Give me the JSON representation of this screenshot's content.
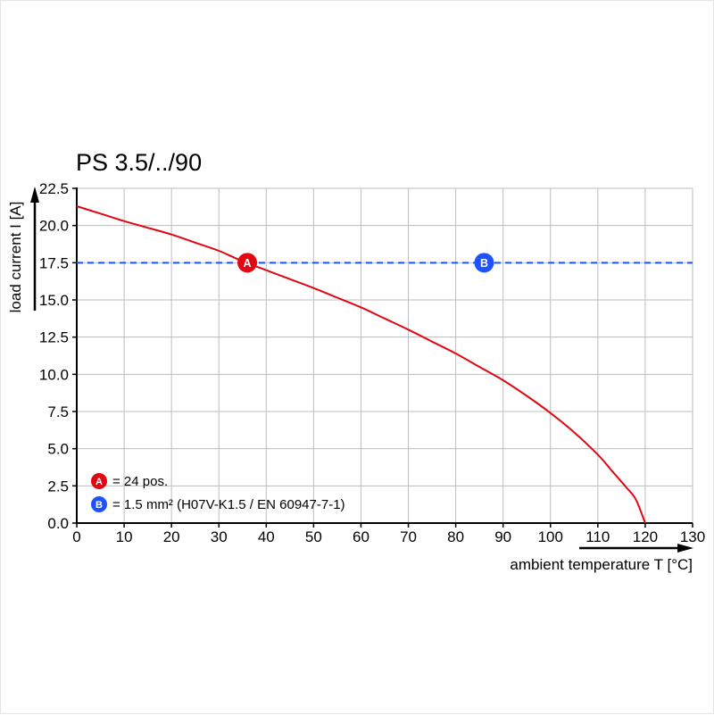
{
  "chart_data": {
    "type": "line",
    "title": "PS 3.5/../90",
    "xlabel": "ambient temperature T [°C]",
    "ylabel": "load current I [A]",
    "xlim": [
      0,
      130
    ],
    "ylim": [
      0,
      22.5
    ],
    "x_ticks": [
      0,
      10,
      20,
      30,
      40,
      50,
      60,
      70,
      80,
      90,
      100,
      110,
      120,
      130
    ],
    "y_ticks": [
      0,
      2.5,
      5,
      7.5,
      10,
      12.5,
      15,
      17.5,
      20,
      22.5
    ],
    "y_tick_labels": [
      "0.0",
      "2.5",
      "5.0",
      "7.5",
      "10.0",
      "12.5",
      "15.0",
      "17.5",
      "20.0",
      "22.5"
    ],
    "grid": true,
    "legend_position": "bottom-left-inside",
    "colors": {
      "curve": "#e30613",
      "reference": "#1f52ff",
      "grid": "#bdbdbd",
      "axis": "#000000",
      "background": "#ffffff"
    },
    "series": [
      {
        "name": "derating-curve",
        "color": "#e30613",
        "style": "solid",
        "points": [
          [
            0,
            21.3
          ],
          [
            5,
            20.8
          ],
          [
            10,
            20.3
          ],
          [
            15,
            19.85
          ],
          [
            20,
            19.4
          ],
          [
            25,
            18.85
          ],
          [
            30,
            18.3
          ],
          [
            35,
            17.6
          ],
          [
            40,
            17.0
          ],
          [
            45,
            16.4
          ],
          [
            50,
            15.8
          ],
          [
            55,
            15.15
          ],
          [
            60,
            14.5
          ],
          [
            65,
            13.75
          ],
          [
            70,
            13.0
          ],
          [
            75,
            12.2
          ],
          [
            80,
            11.4
          ],
          [
            85,
            10.5
          ],
          [
            90,
            9.6
          ],
          [
            95,
            8.55
          ],
          [
            100,
            7.4
          ],
          [
            105,
            6.1
          ],
          [
            110,
            4.6
          ],
          [
            113,
            3.5
          ],
          [
            116,
            2.4
          ],
          [
            118,
            1.6
          ],
          [
            120,
            0
          ]
        ]
      },
      {
        "name": "current-limit-line",
        "color": "#1f52ff",
        "style": "dashed",
        "points": [
          [
            0,
            17.5
          ],
          [
            130,
            17.5
          ]
        ]
      }
    ],
    "markers": [
      {
        "label": "A",
        "x": 36,
        "y": 17.5,
        "color": "#e30613"
      },
      {
        "label": "B",
        "x": 86,
        "y": 17.5,
        "color": "#1f52ff"
      }
    ],
    "legend": {
      "items": [
        {
          "label": "A",
          "color": "#e30613",
          "text": "= 24 pos."
        },
        {
          "label": "B",
          "color": "#1f52ff",
          "text": "= 1.5 mm² (H07V-K1.5 / EN 60947-7-1)"
        }
      ]
    }
  }
}
